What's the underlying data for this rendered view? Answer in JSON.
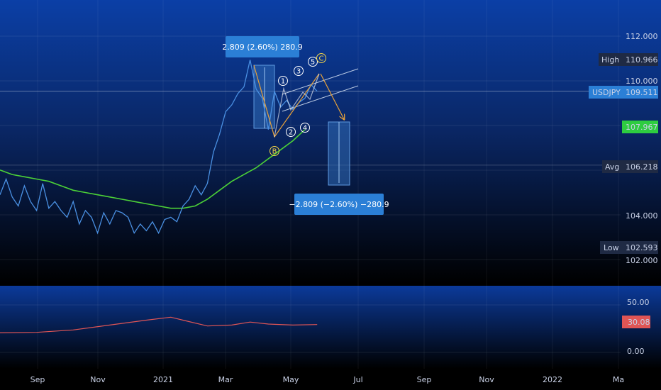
{
  "chart_data": {
    "type": "line",
    "symbol": "USDJPY",
    "x_ticks": [
      "Sep",
      "Nov",
      "2021",
      "Mar",
      "May",
      "Jul",
      "Sep",
      "Nov",
      "2022",
      "Ma"
    ],
    "y_ticks": [
      "112.000",
      "110.000",
      "104.000",
      "102.000"
    ],
    "ylim": [
      101.6,
      112.9
    ],
    "price_series": {
      "color": "#4a90e2",
      "points": [
        [
          0,
          104.9
        ],
        [
          1,
          105.6
        ],
        [
          2,
          104.8
        ],
        [
          3,
          104.4
        ],
        [
          4,
          105.3
        ],
        [
          5,
          104.6
        ],
        [
          6,
          104.2
        ],
        [
          7,
          105.4
        ],
        [
          8,
          104.3
        ],
        [
          9,
          104.6
        ],
        [
          10,
          104.2
        ],
        [
          11,
          103.9
        ],
        [
          12,
          104.6
        ],
        [
          13,
          103.6
        ],
        [
          14,
          104.2
        ],
        [
          15,
          103.9
        ],
        [
          16,
          103.2
        ],
        [
          17,
          104.1
        ],
        [
          18,
          103.6
        ],
        [
          19,
          104.2
        ],
        [
          20,
          104.1
        ],
        [
          21,
          103.9
        ],
        [
          22,
          103.2
        ],
        [
          23,
          103.6
        ],
        [
          24,
          103.3
        ],
        [
          25,
          103.7
        ],
        [
          26,
          103.2
        ],
        [
          27,
          103.8
        ],
        [
          28,
          103.9
        ],
        [
          29,
          103.7
        ],
        [
          30,
          104.4
        ],
        [
          31,
          104.7
        ],
        [
          32,
          105.3
        ],
        [
          33,
          104.9
        ],
        [
          34,
          105.4
        ],
        [
          35,
          106.8
        ],
        [
          36,
          107.6
        ],
        [
          37,
          108.6
        ],
        [
          38,
          108.9
        ],
        [
          39,
          109.4
        ],
        [
          40,
          109.7
        ],
        [
          41,
          110.9
        ],
        [
          42,
          109.6
        ],
        [
          43,
          109.2
        ],
        [
          44,
          107.8
        ],
        [
          45,
          109.5
        ],
        [
          46,
          108.8
        ],
        [
          47,
          109.1
        ],
        [
          48,
          108.7
        ],
        [
          49,
          109.0
        ],
        [
          50,
          109.2
        ],
        [
          51,
          109.8
        ],
        [
          52,
          109.5
        ]
      ]
    },
    "moving_average": {
      "color": "#4cd137",
      "points": [
        [
          0,
          106.0
        ],
        [
          2,
          105.8
        ],
        [
          4,
          105.7
        ],
        [
          6,
          105.6
        ],
        [
          8,
          105.5
        ],
        [
          10,
          105.3
        ],
        [
          12,
          105.1
        ],
        [
          14,
          105.0
        ],
        [
          16,
          104.9
        ],
        [
          18,
          104.8
        ],
        [
          20,
          104.7
        ],
        [
          22,
          104.6
        ],
        [
          24,
          104.5
        ],
        [
          26,
          104.4
        ],
        [
          28,
          104.3
        ],
        [
          30,
          104.3
        ],
        [
          32,
          104.4
        ],
        [
          34,
          104.7
        ],
        [
          36,
          105.1
        ],
        [
          38,
          105.5
        ],
        [
          40,
          105.8
        ],
        [
          42,
          106.1
        ],
        [
          44,
          106.5
        ],
        [
          46,
          106.9
        ],
        [
          48,
          107.3
        ],
        [
          50,
          107.8
        ]
      ]
    },
    "price_labels": {
      "high": {
        "label": "High",
        "value": "110.966"
      },
      "last": {
        "label": "USDJPY",
        "value": "109.511"
      },
      "ma": {
        "value": "107.967"
      },
      "avg": {
        "label": "Avg",
        "value": "106.218"
      },
      "low": {
        "label": "Low",
        "value": "102.593"
      }
    },
    "measure_up": {
      "text": "2.809 (2.60%) 280.9",
      "from": 108.1,
      "to": 110.9
    },
    "measure_down": {
      "text": "−2.809 (−2.60%) −280.9",
      "from": 108.1,
      "to": 105.3
    },
    "wave_labels": [
      {
        "text": "1",
        "style": "white"
      },
      {
        "text": "2",
        "style": "white"
      },
      {
        "text": "3",
        "style": "white"
      },
      {
        "text": "4",
        "style": "white"
      },
      {
        "text": "5",
        "style": "white"
      },
      {
        "text": "B",
        "style": "yellow"
      },
      {
        "text": "C",
        "style": "yellow"
      }
    ],
    "indicator": {
      "y_ticks": [
        "50.00",
        "0.00"
      ],
      "ylim": [
        -10,
        60
      ],
      "last_value": "30.08",
      "color": "#e05555",
      "points": [
        [
          0,
          20
        ],
        [
          6,
          20.5
        ],
        [
          12,
          23
        ],
        [
          18,
          28
        ],
        [
          24,
          33
        ],
        [
          28,
          36
        ],
        [
          30,
          33
        ],
        [
          34,
          27
        ],
        [
          38,
          28
        ],
        [
          41,
          31
        ],
        [
          44,
          29
        ],
        [
          48,
          28
        ],
        [
          52,
          28.5
        ]
      ]
    }
  }
}
